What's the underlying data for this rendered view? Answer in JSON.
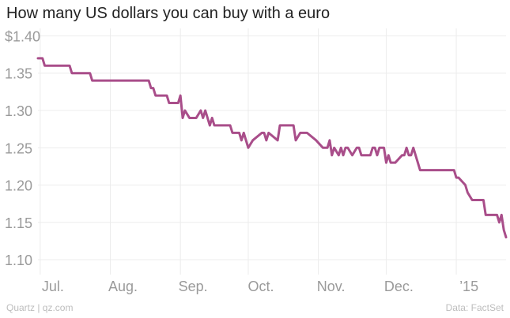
{
  "title": "How many US dollars you can buy with a euro",
  "footer": {
    "source_left": "Quartz | qz.com",
    "source_right": "Data: FactSet"
  },
  "colors": {
    "line": "#a94e8a",
    "grid": "#ececec",
    "tick_text": "#9a9a9a"
  },
  "chart_data": {
    "type": "line",
    "title": "How many US dollars you can buy with a euro",
    "xlabel": "",
    "ylabel": "",
    "ylim": [
      1.08,
      1.41
    ],
    "yticks": [
      {
        "value": 1.4,
        "label": "$1.40"
      },
      {
        "value": 1.35,
        "label": "1.35"
      },
      {
        "value": 1.3,
        "label": "1.30"
      },
      {
        "value": 1.25,
        "label": "1.25"
      },
      {
        "value": 1.2,
        "label": "1.20"
      },
      {
        "value": 1.15,
        "label": "1.15"
      },
      {
        "value": 1.1,
        "label": "1.10"
      }
    ],
    "xlim": [
      "2014-06-30",
      "2015-01-23"
    ],
    "xticks": [
      {
        "date": "2014-07-01",
        "label": "Jul."
      },
      {
        "date": "2014-08-01",
        "label": "Aug."
      },
      {
        "date": "2014-09-01",
        "label": "Sep."
      },
      {
        "date": "2014-10-01",
        "label": "Oct."
      },
      {
        "date": "2014-11-01",
        "label": "Nov."
      },
      {
        "date": "2014-12-01",
        "label": "Dec."
      },
      {
        "date": "2015-01-01",
        "label": "’15"
      }
    ],
    "grid": true,
    "series": [
      {
        "x": [
          "2014-06-30",
          "2014-07-02",
          "2014-07-03",
          "2014-07-14",
          "2014-07-15",
          "2014-07-23",
          "2014-07-24",
          "2014-08-18",
          "2014-08-19",
          "2014-08-20",
          "2014-08-21",
          "2014-08-26",
          "2014-08-27",
          "2014-08-30",
          "2014-08-31",
          "2014-09-01",
          "2014-09-02",
          "2014-09-03",
          "2014-09-05",
          "2014-09-08",
          "2014-09-10",
          "2014-09-11",
          "2014-09-12",
          "2014-09-14",
          "2014-09-15",
          "2014-09-16",
          "2014-09-23",
          "2014-09-24",
          "2014-09-27",
          "2014-09-28",
          "2014-09-29",
          "2014-10-01",
          "2014-10-03",
          "2014-10-07",
          "2014-10-08",
          "2014-10-09",
          "2014-10-10",
          "2014-10-14",
          "2014-10-15",
          "2014-10-16",
          "2014-10-21",
          "2014-10-22",
          "2014-10-24",
          "2014-10-27",
          "2014-10-31",
          "2014-11-03",
          "2014-11-05",
          "2014-11-06",
          "2014-11-07",
          "2014-11-08",
          "2014-11-10",
          "2014-11-11",
          "2014-11-12",
          "2014-11-13",
          "2014-11-14",
          "2014-11-16",
          "2014-11-18",
          "2014-11-19",
          "2014-11-20",
          "2014-11-24",
          "2014-11-25",
          "2014-11-26",
          "2014-11-27",
          "2014-11-28",
          "2014-11-30",
          "2014-12-01",
          "2014-12-02",
          "2014-12-03",
          "2014-12-04",
          "2014-12-05",
          "2014-12-08",
          "2014-12-09",
          "2014-12-10",
          "2014-12-11",
          "2014-12-12",
          "2014-12-13",
          "2014-12-15",
          "2014-12-16",
          "2014-12-18",
          "2014-12-19",
          "2014-12-31",
          "2015-01-01",
          "2015-01-02",
          "2015-01-05",
          "2015-01-06",
          "2015-01-08",
          "2015-01-13",
          "2015-01-14",
          "2015-01-19",
          "2015-01-20",
          "2015-01-21",
          "2015-01-22",
          "2015-01-23"
        ],
        "y": [
          1.37,
          1.37,
          1.36,
          1.36,
          1.35,
          1.35,
          1.34,
          1.34,
          1.33,
          1.33,
          1.32,
          1.32,
          1.31,
          1.31,
          1.31,
          1.32,
          1.29,
          1.3,
          1.29,
          1.29,
          1.3,
          1.29,
          1.3,
          1.28,
          1.29,
          1.28,
          1.28,
          1.27,
          1.27,
          1.26,
          1.27,
          1.25,
          1.26,
          1.27,
          1.27,
          1.26,
          1.27,
          1.26,
          1.28,
          1.28,
          1.28,
          1.26,
          1.27,
          1.27,
          1.26,
          1.25,
          1.25,
          1.26,
          1.24,
          1.25,
          1.24,
          1.25,
          1.24,
          1.25,
          1.25,
          1.24,
          1.25,
          1.25,
          1.24,
          1.24,
          1.25,
          1.25,
          1.24,
          1.25,
          1.25,
          1.23,
          1.24,
          1.23,
          1.23,
          1.23,
          1.24,
          1.24,
          1.25,
          1.24,
          1.24,
          1.25,
          1.23,
          1.22,
          1.22,
          1.22,
          1.22,
          1.21,
          1.21,
          1.2,
          1.19,
          1.18,
          1.18,
          1.16,
          1.16,
          1.15,
          1.16,
          1.14,
          1.13
        ]
      }
    ]
  }
}
